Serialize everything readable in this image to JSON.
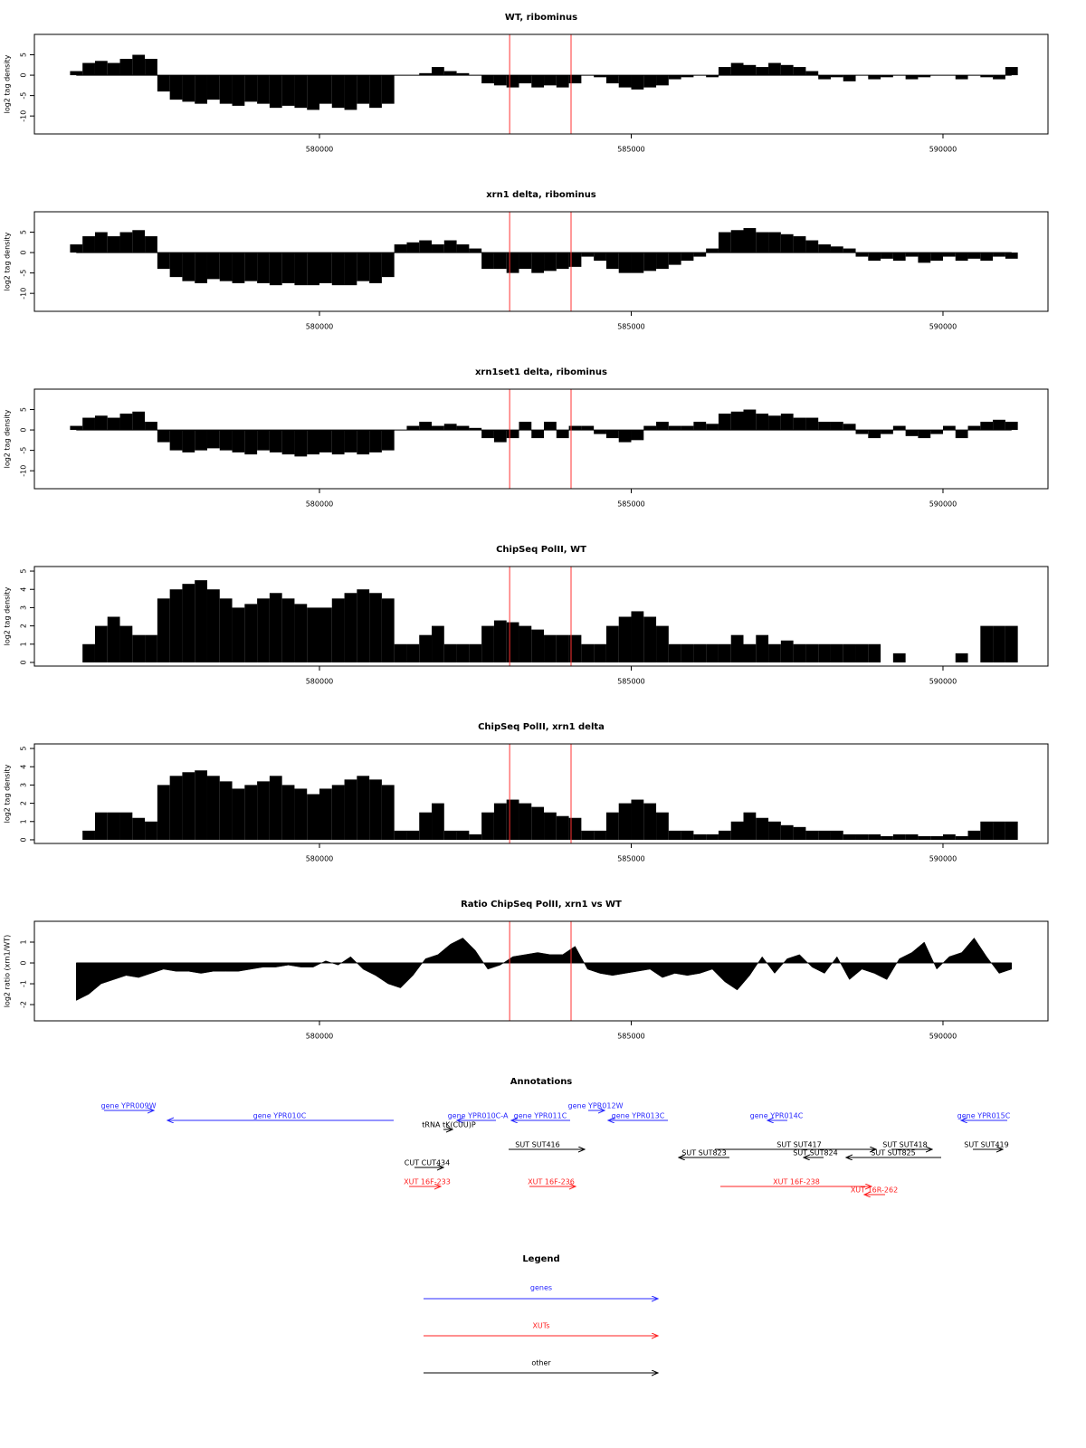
{
  "chart_data": [
    {
      "type": "bar",
      "title": "WT, ribominus",
      "ylabel": "log2 tag density",
      "zero_line": true,
      "color": "#000000",
      "markers": [
        583050,
        584035
      ],
      "marker_color": "#ff3333",
      "xlim": [
        575428,
        591684
      ],
      "xticks": [
        580000,
        585000,
        590000
      ],
      "ylim": [
        -14.4,
        10
      ],
      "yticks": [
        -10,
        -5,
        0,
        5
      ],
      "x": [
        576100,
        576300,
        576500,
        576700,
        576900,
        577100,
        577300,
        577500,
        577700,
        577900,
        578100,
        578300,
        578500,
        578700,
        578900,
        579100,
        579300,
        579500,
        579700,
        579900,
        580100,
        580300,
        580500,
        580700,
        580900,
        581100,
        581300,
        581500,
        581700,
        581900,
        582100,
        582300,
        582500,
        582700,
        582900,
        583100,
        583300,
        583500,
        583700,
        583900,
        584100,
        584300,
        584500,
        584700,
        584900,
        585100,
        585300,
        585500,
        585700,
        585900,
        586100,
        586300,
        586500,
        586700,
        586900,
        587100,
        587300,
        587500,
        587700,
        587900,
        588100,
        588300,
        588500,
        588700,
        588900,
        589100,
        589300,
        589500,
        589700,
        589900,
        590100,
        590300,
        590500,
        590700,
        590900,
        591100
      ],
      "values": [
        1,
        3,
        3.5,
        3,
        4,
        5,
        4,
        -4,
        -6,
        -6.5,
        -7,
        -6,
        -7,
        -7.5,
        -6.5,
        -7,
        -8,
        -7.5,
        -8,
        -8.5,
        -7,
        -8,
        -8.5,
        -7,
        -8,
        -7,
        0,
        0,
        0.5,
        2,
        1,
        0.5,
        0,
        -2,
        -2.5,
        -3,
        -2,
        -3,
        -2.5,
        -3,
        -2,
        0,
        -0.5,
        -2,
        -3,
        -3.5,
        -3,
        -2.5,
        -1,
        -0.5,
        0,
        -0.5,
        2,
        3,
        2.5,
        2,
        3,
        2.5,
        2,
        1,
        -1,
        -0.5,
        -1.5,
        0,
        -1,
        -0.5,
        0,
        -1,
        -0.5,
        0,
        0,
        -1,
        0,
        -0.5,
        -1,
        2
      ]
    },
    {
      "type": "bar",
      "title": "xrn1 delta, ribominus",
      "ylabel": "log2 tag density",
      "zero_line": true,
      "color": "#000000",
      "markers": [
        583050,
        584035
      ],
      "marker_color": "#ff3333",
      "xlim": [
        575428,
        591684
      ],
      "xticks": [
        580000,
        585000,
        590000
      ],
      "ylim": [
        -14.4,
        10
      ],
      "yticks": [
        -10,
        -5,
        0,
        5
      ],
      "x": [
        576100,
        576300,
        576500,
        576700,
        576900,
        577100,
        577300,
        577500,
        577700,
        577900,
        578100,
        578300,
        578500,
        578700,
        578900,
        579100,
        579300,
        579500,
        579700,
        579900,
        580100,
        580300,
        580500,
        580700,
        580900,
        581100,
        581300,
        581500,
        581700,
        581900,
        582100,
        582300,
        582500,
        582700,
        582900,
        583100,
        583300,
        583500,
        583700,
        583900,
        584100,
        584300,
        584500,
        584700,
        584900,
        585100,
        585300,
        585500,
        585700,
        585900,
        586100,
        586300,
        586500,
        586700,
        586900,
        587100,
        587300,
        587500,
        587700,
        587900,
        588100,
        588300,
        588500,
        588700,
        588900,
        589100,
        589300,
        589500,
        589700,
        589900,
        590100,
        590300,
        590500,
        590700,
        590900,
        591100
      ],
      "values": [
        2,
        4,
        5,
        4,
        5,
        5.5,
        4,
        -4,
        -6,
        -7,
        -7.5,
        -6.5,
        -7,
        -7.5,
        -7,
        -7.5,
        -8,
        -7.5,
        -8,
        -8,
        -7.5,
        -8,
        -8,
        -7,
        -7.5,
        -6,
        2,
        2.5,
        3,
        2,
        3,
        2,
        1,
        -4,
        -4,
        -5,
        -4,
        -5,
        -4.5,
        -4,
        -3.5,
        -1,
        -2,
        -4,
        -5,
        -5,
        -4.5,
        -4,
        -3,
        -2,
        -1,
        1,
        5,
        5.5,
        6,
        5,
        5,
        4.5,
        4,
        3,
        2,
        1.5,
        1,
        -1,
        -2,
        -1.5,
        -2,
        -1,
        -2.5,
        -2,
        -1,
        -2,
        -1.5,
        -2,
        -1,
        -1.5
      ]
    },
    {
      "type": "bar",
      "title": "xrn1set1 delta, ribominus",
      "ylabel": "log2 tag density",
      "zero_line": true,
      "color": "#000000",
      "markers": [
        583050,
        584035
      ],
      "marker_color": "#ff3333",
      "xlim": [
        575428,
        591684
      ],
      "xticks": [
        580000,
        585000,
        590000
      ],
      "ylim": [
        -14.4,
        10
      ],
      "yticks": [
        -10,
        -5,
        0,
        5
      ],
      "x": [
        576100,
        576300,
        576500,
        576700,
        576900,
        577100,
        577300,
        577500,
        577700,
        577900,
        578100,
        578300,
        578500,
        578700,
        578900,
        579100,
        579300,
        579500,
        579700,
        579900,
        580100,
        580300,
        580500,
        580700,
        580900,
        581100,
        581300,
        581500,
        581700,
        581900,
        582100,
        582300,
        582500,
        582700,
        582900,
        583100,
        583300,
        583500,
        583700,
        583900,
        584100,
        584300,
        584500,
        584700,
        584900,
        585100,
        585300,
        585500,
        585700,
        585900,
        586100,
        586300,
        586500,
        586700,
        586900,
        587100,
        587300,
        587500,
        587700,
        587900,
        588100,
        588300,
        588500,
        588700,
        588900,
        589100,
        589300,
        589500,
        589700,
        589900,
        590100,
        590300,
        590500,
        590700,
        590900,
        591100
      ],
      "values": [
        1,
        3,
        3.5,
        3,
        4,
        4.5,
        2,
        -3,
        -5,
        -5.5,
        -5,
        -4.5,
        -5,
        -5.5,
        -6,
        -5,
        -5.5,
        -6,
        -6.5,
        -6,
        -5.5,
        -6,
        -5.5,
        -6,
        -5.5,
        -5,
        0,
        1,
        2,
        1,
        1.5,
        1,
        0.5,
        -2,
        -3,
        -2,
        2,
        -2,
        2,
        -2,
        1,
        1,
        -1,
        -2,
        -3,
        -2.5,
        1,
        2,
        1,
        1,
        2,
        1.5,
        4,
        4.5,
        5,
        4,
        3.5,
        4,
        3,
        3,
        2,
        2,
        1.5,
        -1,
        -2,
        -1,
        1,
        -1.5,
        -2,
        -1,
        1,
        -2,
        1,
        2,
        2.5,
        2
      ]
    },
    {
      "type": "bar",
      "title": "ChipSeq PolII, WT",
      "ylabel": "log2 tag density",
      "zero_line": false,
      "color": "#000000",
      "markers": [
        583050,
        584035
      ],
      "marker_color": "#ff3333",
      "xlim": [
        575428,
        591684
      ],
      "xticks": [
        580000,
        585000,
        590000
      ],
      "ylim": [
        -0.2,
        5.25
      ],
      "yticks": [
        0,
        1,
        2,
        3,
        4,
        5
      ],
      "x": [
        576100,
        576300,
        576500,
        576700,
        576900,
        577100,
        577300,
        577500,
        577700,
        577900,
        578100,
        578300,
        578500,
        578700,
        578900,
        579100,
        579300,
        579500,
        579700,
        579900,
        580100,
        580300,
        580500,
        580700,
        580900,
        581100,
        581300,
        581500,
        581700,
        581900,
        582100,
        582300,
        582500,
        582700,
        582900,
        583100,
        583300,
        583500,
        583700,
        583900,
        584100,
        584300,
        584500,
        584700,
        584900,
        585100,
        585300,
        585500,
        585700,
        585900,
        586100,
        586300,
        586500,
        586700,
        586900,
        587100,
        587300,
        587500,
        587700,
        587900,
        588100,
        588300,
        588500,
        588700,
        588900,
        589100,
        589300,
        589500,
        589700,
        589900,
        590100,
        590300,
        590500,
        590700,
        590900,
        591100
      ],
      "values": [
        0,
        1,
        2,
        2.5,
        2,
        1.5,
        1.5,
        3.5,
        4,
        4.3,
        4.5,
        4,
        3.5,
        3,
        3.2,
        3.5,
        3.8,
        3.5,
        3.2,
        3,
        3,
        3.5,
        3.8,
        4,
        3.8,
        3.5,
        1,
        1,
        1.5,
        2,
        1,
        1,
        1,
        2,
        2.3,
        2.2,
        2,
        1.8,
        1.5,
        1.5,
        1.5,
        1,
        1,
        2,
        2.5,
        2.8,
        2.5,
        2,
        1,
        1,
        1,
        1,
        1,
        1.5,
        1,
        1.5,
        1,
        1.2,
        1,
        1,
        1,
        1,
        1,
        1,
        1,
        0,
        0.5,
        0,
        0,
        0,
        0,
        0.5,
        0,
        2,
        2,
        2
      ]
    },
    {
      "type": "bar",
      "title": "ChipSeq PolII, xrn1 delta",
      "ylabel": "log2 tag density",
      "zero_line": false,
      "color": "#000000",
      "markers": [
        583050,
        584035
      ],
      "marker_color": "#ff3333",
      "xlim": [
        575428,
        591684
      ],
      "xticks": [
        580000,
        585000,
        590000
      ],
      "ylim": [
        -0.2,
        5.25
      ],
      "yticks": [
        0,
        1,
        2,
        3,
        4,
        5
      ],
      "x": [
        576100,
        576300,
        576500,
        576700,
        576900,
        577100,
        577300,
        577500,
        577700,
        577900,
        578100,
        578300,
        578500,
        578700,
        578900,
        579100,
        579300,
        579500,
        579700,
        579900,
        580100,
        580300,
        580500,
        580700,
        580900,
        581100,
        581300,
        581500,
        581700,
        581900,
        582100,
        582300,
        582500,
        582700,
        582900,
        583100,
        583300,
        583500,
        583700,
        583900,
        584100,
        584300,
        584500,
        584700,
        584900,
        585100,
        585300,
        585500,
        585700,
        585900,
        586100,
        586300,
        586500,
        586700,
        586900,
        587100,
        587300,
        587500,
        587700,
        587900,
        588100,
        588300,
        588500,
        588700,
        588900,
        589100,
        589300,
        589500,
        589700,
        589900,
        590100,
        590300,
        590500,
        590700,
        590900,
        591100
      ],
      "values": [
        0,
        0.5,
        1.5,
        1.5,
        1.5,
        1.2,
        1,
        3,
        3.5,
        3.7,
        3.8,
        3.5,
        3.2,
        2.8,
        3,
        3.2,
        3.5,
        3,
        2.8,
        2.5,
        2.8,
        3,
        3.3,
        3.5,
        3.3,
        3,
        0.5,
        0.5,
        1.5,
        2,
        0.5,
        0.5,
        0.3,
        1.5,
        2,
        2.2,
        2,
        1.8,
        1.5,
        1.3,
        1.2,
        0.5,
        0.5,
        1.5,
        2,
        2.2,
        2,
        1.5,
        0.5,
        0.5,
        0.3,
        0.3,
        0.5,
        1,
        1.5,
        1.2,
        1,
        0.8,
        0.7,
        0.5,
        0.5,
        0.5,
        0.3,
        0.3,
        0.3,
        0.2,
        0.3,
        0.3,
        0.2,
        0.2,
        0.3,
        0.2,
        0.5,
        1,
        1,
        1
      ]
    },
    {
      "type": "area",
      "title": "Ratio ChipSeq PolII, xrn1 vs WT",
      "ylabel": "log2 ratio (xrn1/WT)",
      "zero_line": true,
      "color": "#000000",
      "markers": [
        583050,
        584035
      ],
      "marker_color": "#ff3333",
      "xlim": [
        575428,
        591684
      ],
      "xticks": [
        580000,
        585000,
        590000
      ],
      "ylim": [
        -2.78,
        2
      ],
      "yticks": [
        -2,
        -1,
        0,
        1
      ],
      "x": [
        576100,
        576300,
        576500,
        576700,
        576900,
        577100,
        577300,
        577500,
        577700,
        577900,
        578100,
        578300,
        578500,
        578700,
        578900,
        579100,
        579300,
        579500,
        579700,
        579900,
        580100,
        580300,
        580500,
        580700,
        580900,
        581100,
        581300,
        581500,
        581700,
        581900,
        582100,
        582300,
        582500,
        582700,
        582900,
        583100,
        583300,
        583500,
        583700,
        583900,
        584100,
        584300,
        584500,
        584700,
        584900,
        585100,
        585300,
        585500,
        585700,
        585900,
        586100,
        586300,
        586500,
        586700,
        586900,
        587100,
        587300,
        587500,
        587700,
        587900,
        588100,
        588300,
        588500,
        588700,
        588900,
        589100,
        589300,
        589500,
        589700,
        589900,
        590100,
        590300,
        590500,
        590700,
        590900,
        591100
      ],
      "values": [
        -1.8,
        -1.5,
        -1,
        -0.8,
        -0.6,
        -0.7,
        -0.5,
        -0.3,
        -0.4,
        -0.4,
        -0.5,
        -0.4,
        -0.4,
        -0.4,
        -0.3,
        -0.2,
        -0.2,
        -0.1,
        -0.2,
        -0.2,
        0.1,
        -0.1,
        0.3,
        -0.3,
        -0.6,
        -1,
        -1.2,
        -0.6,
        0.2,
        0.4,
        0.9,
        1.2,
        0.6,
        -0.3,
        -0.1,
        0.3,
        0.4,
        0.5,
        0.4,
        0.4,
        0.8,
        -0.3,
        -0.5,
        -0.6,
        -0.5,
        -0.4,
        -0.3,
        -0.7,
        -0.5,
        -0.6,
        -0.5,
        -0.3,
        -0.9,
        -1.3,
        -0.6,
        0.3,
        -0.5,
        0.2,
        0.4,
        -0.2,
        -0.5,
        0.3,
        -0.8,
        -0.3,
        -0.5,
        -0.8,
        0.2,
        0.5,
        1,
        -0.3,
        0.3,
        0.5,
        1.2,
        0.3,
        -0.5,
        -0.3
      ]
    }
  ],
  "annotations": {
    "title": "Annotations",
    "items": [
      "gene YPR009W",
      "gene YPR010C",
      "gene YPR010C-A",
      "tRNA tK(CUU)P",
      "gene YPR011C",
      "gene YPR012W",
      "gene YPR013C",
      "gene YPR014C",
      "gene YPR015C",
      "SUT SUT416",
      "SUT SUT417",
      "SUT SUT418",
      "SUT SUT419",
      "SUT SUT823",
      "SUT SUT824",
      "SUT SUT825",
      "CUT CUT434",
      "XUT 16F-233",
      "XUT 16F-236",
      "XUT 16F-238",
      "XUT 16R-262"
    ]
  },
  "legend": {
    "title": "Legend",
    "items": [
      "genes",
      "XUTs",
      "other"
    ]
  }
}
